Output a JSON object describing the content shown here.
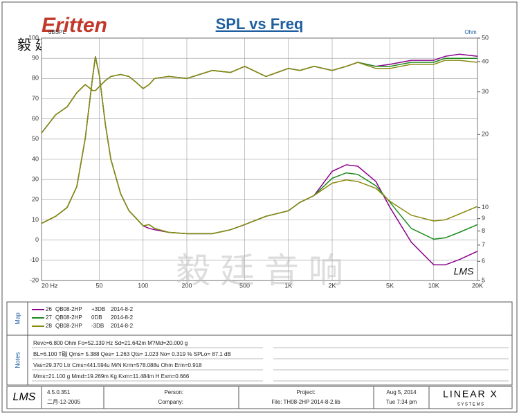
{
  "header": {
    "brand": "Eritten",
    "brand_cn": "毅 廷 音 响",
    "watermark": "毅 廷 音 响"
  },
  "chart_data": {
    "type": "line",
    "title": "SPL vs Freq",
    "y_label": "dBSPL",
    "y2_label": "Ohm",
    "annotation": "LMS",
    "x_scale": "log",
    "y2_scale": "log",
    "grid": true,
    "x": [
      20,
      25,
      30,
      35,
      40,
      45,
      47,
      50,
      55,
      60,
      70,
      80,
      90,
      100,
      110,
      120,
      150,
      200,
      300,
      400,
      500,
      700,
      1000,
      1200,
      1500,
      2000,
      2500,
      3000,
      4000,
      5000,
      7000,
      10000,
      12000,
      15000,
      20000
    ],
    "xlim": [
      20,
      20000
    ],
    "xticks": [
      {
        "value": 20,
        "label": "20 Hz"
      },
      50,
      100,
      200,
      500,
      {
        "value": 1000,
        "label": "1K"
      },
      {
        "value": 2000,
        "label": "2K"
      },
      {
        "value": 5000,
        "label": "5K"
      },
      {
        "value": 10000,
        "label": "10K"
      },
      {
        "value": 20000,
        "label": "20K"
      }
    ],
    "ylim": [
      -20,
      100
    ],
    "yticks": [
      100,
      90,
      80,
      70,
      60,
      50,
      40,
      30,
      20,
      10,
      0,
      -10,
      -20
    ],
    "y2lim": [
      5,
      50
    ],
    "y2ticks": [
      50,
      40,
      30,
      20,
      10,
      9,
      8,
      7,
      6,
      5
    ],
    "series": [
      {
        "color": "#8b008b",
        "values": [
          53,
          62,
          66,
          73,
          77,
          74,
          74,
          76,
          79,
          81,
          82,
          81,
          78,
          75,
          77,
          80,
          81,
          80,
          84,
          83,
          86,
          81,
          85,
          84,
          86,
          84,
          86,
          88,
          86,
          87,
          89,
          89,
          91,
          92,
          91
        ]
      },
      {
        "color": "#1a8a1a",
        "values": [
          53,
          62,
          66,
          73,
          77,
          74,
          74,
          76,
          79,
          81,
          82,
          81,
          78,
          75,
          77,
          80,
          81,
          80,
          84,
          83,
          86,
          81,
          85,
          84,
          86,
          84,
          86,
          88,
          86,
          86,
          88,
          88,
          90,
          90,
          90
        ]
      },
      {
        "color": "#8a8a10",
        "values": [
          53,
          62,
          66,
          73,
          77,
          74,
          74,
          76,
          79,
          81,
          82,
          81,
          78,
          75,
          77,
          80,
          81,
          80,
          84,
          83,
          86,
          81,
          85,
          84,
          86,
          84,
          86,
          88,
          85,
          85,
          87,
          87,
          89,
          89,
          88
        ]
      },
      {
        "color": "#8b008b",
        "axis": "y2",
        "values": [
          8.6,
          9.2,
          10,
          12.2,
          19.3,
          34.8,
          42,
          35,
          22,
          15.8,
          11.4,
          9.7,
          9,
          8.4,
          8.2,
          8.1,
          7.9,
          7.8,
          7.8,
          8.1,
          8.5,
          9.2,
          9.7,
          10.5,
          11.2,
          14.1,
          15,
          14.8,
          12.8,
          10,
          7.2,
          5.8,
          5.8,
          6.1,
          6.6
        ]
      },
      {
        "color": "#1a8a1a",
        "axis": "y2",
        "values": [
          8.6,
          9.2,
          10,
          12.2,
          19.3,
          34.8,
          42,
          35,
          22,
          15.8,
          11.4,
          9.7,
          9,
          8.4,
          8.5,
          8.2,
          7.9,
          7.8,
          7.8,
          8.1,
          8.5,
          9.2,
          9.7,
          10.5,
          11.2,
          13.2,
          13.9,
          13.7,
          12.3,
          10.5,
          8.2,
          7.4,
          7.5,
          7.9,
          8.5
        ]
      },
      {
        "color": "#8a8a10",
        "axis": "y2",
        "values": [
          8.6,
          9.2,
          10,
          12.2,
          19.3,
          34.8,
          42,
          35,
          22,
          15.8,
          11.4,
          9.7,
          9,
          8.4,
          8.5,
          8.2,
          7.9,
          7.8,
          7.8,
          8.1,
          8.5,
          9.2,
          9.7,
          10.5,
          11.2,
          12.6,
          13,
          12.8,
          12,
          10.6,
          9.3,
          8.8,
          8.9,
          9.4,
          10.1
        ]
      }
    ]
  },
  "map": {
    "label": "Map",
    "entries": [
      {
        "id": "26",
        "model": "QB08-2HP",
        "level": "+3DB",
        "date": "2014-8-2"
      },
      {
        "id": "27",
        "model": "QB08-2HP",
        "level": "0DB",
        "date": "2014-8-2"
      },
      {
        "id": "28",
        "model": "QB08-2HP",
        "level": "-3DB",
        "date": "2014-8-2"
      }
    ]
  },
  "notes": {
    "label": "Notes",
    "lines": [
      "Revc=6.800 Ohm  Fo=52.139 Hz  Sd=21.642m M?Md=20.000 g",
      "BL=6.100 T磁  Qms= 5.388  Qes= 1.263  Qts= 1.023  No= 0.319 %  SPLo= 87.1 dB",
      "Vas=29.370 Ltr  Cms=441.594u M/N  Krm=578.088u Ohm  Erm=0.918",
      "Mms=21.100 g  Mmd=19.269m Kg  Kxm=11.484m H  Exm=0.666"
    ]
  },
  "footer": {
    "logo": "LMS",
    "version": "4.5.0.351",
    "date_build": "二月-12-2005",
    "person": "Person:",
    "company": "Company:",
    "project": "Project:",
    "file": "File: TH08-2HP    2014-8-2.lib",
    "date": "Aug  5, 2014",
    "time": "Tue  7:34 pm",
    "brand": "LINEAR X",
    "brand_sub": "S Y S T E M S"
  }
}
